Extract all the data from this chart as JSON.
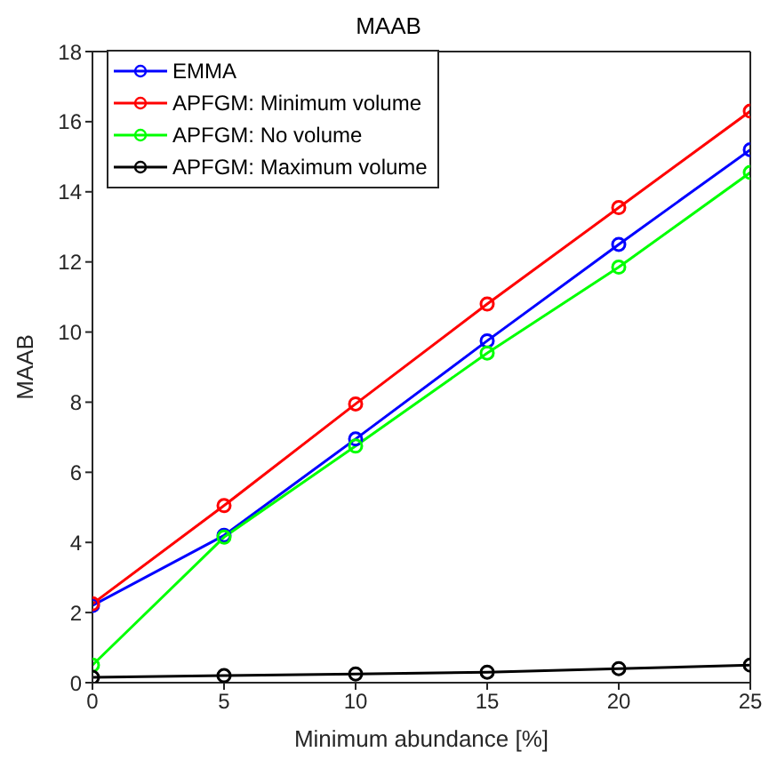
{
  "chart_data": {
    "type": "line",
    "title": "MAAB",
    "xlabel": "Minimum abundance [%]",
    "ylabel": "MAAB",
    "x": [
      0,
      5,
      10,
      15,
      20,
      25
    ],
    "xlim": [
      0,
      25
    ],
    "xticks": [
      0,
      5,
      10,
      15,
      20,
      25
    ],
    "ylim": [
      0,
      18
    ],
    "yticks": [
      0,
      2,
      4,
      6,
      8,
      10,
      12,
      14,
      16,
      18
    ],
    "grid": false,
    "legend": "top left",
    "marker": "circle",
    "line_style": "solid",
    "series": [
      {
        "name": "EMMA",
        "color": "#0000ff",
        "values": [
          2.2,
          4.2,
          6.95,
          9.75,
          12.5,
          15.2
        ]
      },
      {
        "name": "APFGM: Minimum volume",
        "color": "#ff0000",
        "values": [
          2.25,
          5.05,
          7.95,
          10.8,
          13.55,
          16.3
        ]
      },
      {
        "name": "APFGM: No volume",
        "color": "#00ff00",
        "values": [
          0.5,
          4.15,
          6.75,
          9.4,
          11.85,
          14.55
        ]
      },
      {
        "name": "APFGM: Maximum volume",
        "color": "#000000",
        "values": [
          0.15,
          0.2,
          0.25,
          0.3,
          0.4,
          0.5
        ]
      }
    ]
  }
}
